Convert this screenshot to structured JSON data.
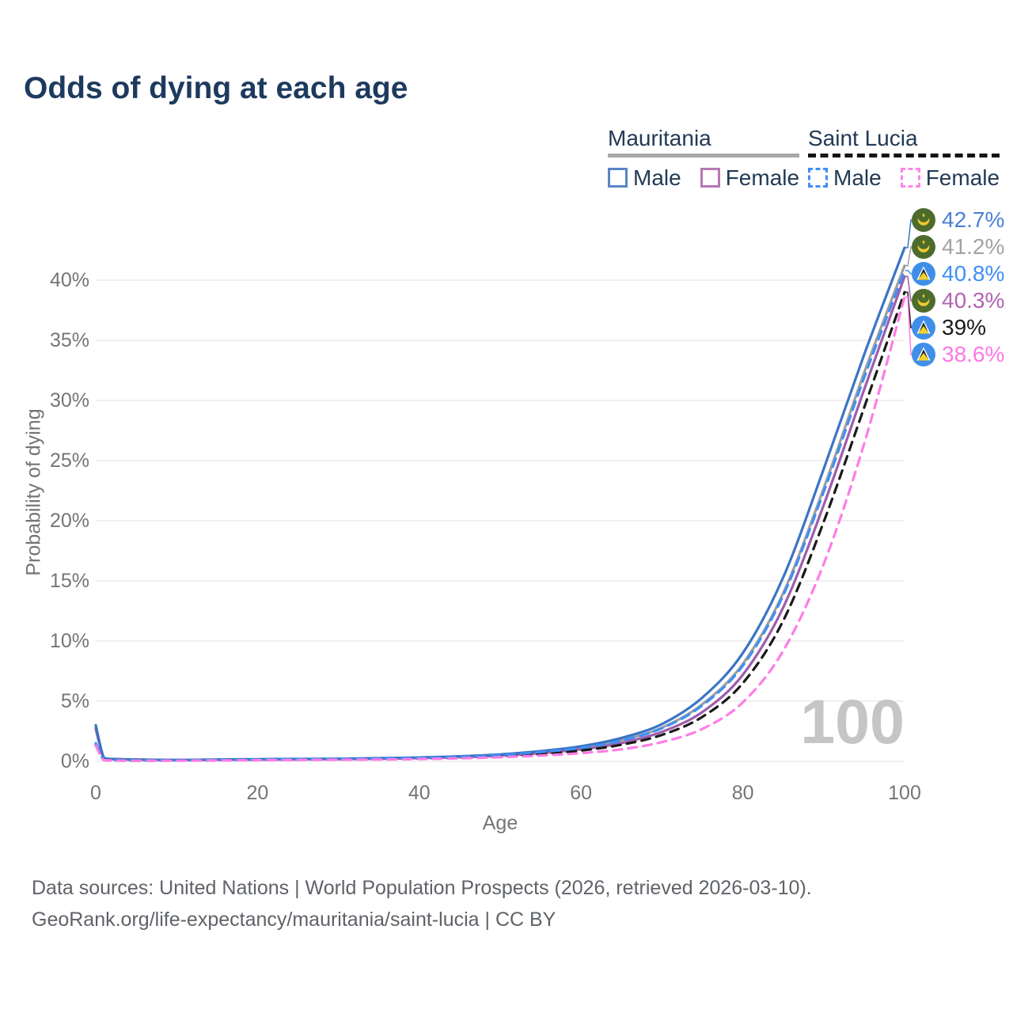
{
  "page": {
    "title": "Odds of dying at each age"
  },
  "legend": {
    "groups": [
      {
        "label": "Mauritania",
        "line_style": "solid",
        "underline_color": "#a8a8a8",
        "items": [
          {
            "label": "Male",
            "color": "#5b84c4",
            "dash": false
          },
          {
            "label": "Female",
            "color": "#b678b6",
            "dash": false
          }
        ]
      },
      {
        "label": "Saint Lucia",
        "line_style": "dashed",
        "underline_color": "#141414",
        "items": [
          {
            "label": "Male",
            "color": "#3f8ff5",
            "dash": true
          },
          {
            "label": "Female",
            "color": "#ff85e8",
            "dash": true
          }
        ]
      }
    ]
  },
  "chart_data": {
    "type": "line",
    "title": "Odds of dying at each age",
    "xlabel": "Age",
    "ylabel": "Probability of dying",
    "xlim": [
      0,
      100
    ],
    "ylim": [
      0,
      44
    ],
    "x_ticks": [
      0,
      20,
      40,
      60,
      80,
      100
    ],
    "y_ticks": [
      0,
      5,
      10,
      15,
      20,
      25,
      30,
      35,
      40
    ],
    "y_tick_suffix": "%",
    "grid": "horizontal",
    "legend_position": "top-right",
    "x": [
      0,
      1,
      2,
      5,
      10,
      15,
      20,
      25,
      30,
      35,
      40,
      45,
      50,
      55,
      60,
      65,
      70,
      75,
      80,
      85,
      90,
      95,
      100
    ],
    "series": [
      {
        "name": "Mauritania Male",
        "country": "Mauritania",
        "sex": "male",
        "flag": "mauritania",
        "color": "#3b74c4",
        "label_color": "#4a80d8",
        "dash": false,
        "end_label": "42.7%",
        "values": [
          3.0,
          0.3,
          0.2,
          0.15,
          0.12,
          0.15,
          0.18,
          0.2,
          0.22,
          0.26,
          0.32,
          0.42,
          0.58,
          0.85,
          1.25,
          1.95,
          3.1,
          5.3,
          9.0,
          15.3,
          24.3,
          33.8,
          42.7
        ]
      },
      {
        "name": "Mauritania Both sexes",
        "country": "Mauritania",
        "sex": "both",
        "flag": "mauritania",
        "color": "#9e9e9e",
        "label_color": "#a3a3a3",
        "dash": false,
        "end_label": "41.2%",
        "values": [
          2.85,
          0.28,
          0.19,
          0.14,
          0.11,
          0.13,
          0.16,
          0.18,
          0.2,
          0.24,
          0.3,
          0.38,
          0.53,
          0.78,
          1.15,
          1.75,
          2.8,
          4.75,
          8.1,
          14.0,
          22.7,
          32.3,
          41.2
        ]
      },
      {
        "name": "Saint Lucia Male",
        "country": "Saint Lucia",
        "sex": "male",
        "flag": "saint-lucia",
        "color": "#3f8ff5",
        "label_color": "#3f8ff5",
        "dash": true,
        "end_label": "40.8%",
        "values": [
          1.5,
          0.12,
          0.09,
          0.07,
          0.08,
          0.1,
          0.14,
          0.17,
          0.19,
          0.23,
          0.29,
          0.37,
          0.52,
          0.77,
          1.12,
          1.72,
          2.75,
          4.65,
          7.95,
          13.8,
          22.4,
          31.9,
          40.8
        ]
      },
      {
        "name": "Mauritania Female",
        "country": "Mauritania",
        "sex": "female",
        "flag": "mauritania",
        "color": "#9f5dab",
        "label_color": "#b164b1",
        "dash": false,
        "end_label": "40.3%",
        "values": [
          2.7,
          0.26,
          0.18,
          0.13,
          0.1,
          0.12,
          0.14,
          0.16,
          0.18,
          0.21,
          0.27,
          0.34,
          0.47,
          0.68,
          1.0,
          1.52,
          2.45,
          4.1,
          7.2,
          12.8,
          21.3,
          30.9,
          40.3
        ]
      },
      {
        "name": "Saint Lucia Both sexes",
        "country": "Saint Lucia",
        "sex": "both",
        "flag": "saint-lucia",
        "color": "#1a1a1a",
        "label_color": "#1a1a1a",
        "dash": true,
        "end_label": "39%",
        "values": [
          1.4,
          0.11,
          0.08,
          0.06,
          0.07,
          0.09,
          0.12,
          0.14,
          0.16,
          0.19,
          0.24,
          0.31,
          0.43,
          0.62,
          0.9,
          1.38,
          2.2,
          3.7,
          6.5,
          11.7,
          19.9,
          29.4,
          39.0
        ]
      },
      {
        "name": "Saint Lucia Female",
        "country": "Saint Lucia",
        "sex": "female",
        "flag": "saint-lucia",
        "color": "#ff7ce6",
        "label_color": "#ff77e5",
        "dash": true,
        "end_label": "38.6%",
        "values": [
          1.3,
          0.1,
          0.07,
          0.05,
          0.05,
          0.07,
          0.09,
          0.11,
          0.13,
          0.15,
          0.19,
          0.25,
          0.34,
          0.48,
          0.68,
          1.0,
          1.6,
          2.7,
          4.9,
          9.2,
          16.4,
          26.4,
          38.6
        ]
      }
    ]
  },
  "watermark": "100",
  "footer": {
    "line1": "Data sources: United Nations | World Population Prospects (2026, retrieved 2026-03-10).",
    "line2": "GeoRank.org/life-expectancy/mauritania/saint-lucia | CC BY"
  }
}
